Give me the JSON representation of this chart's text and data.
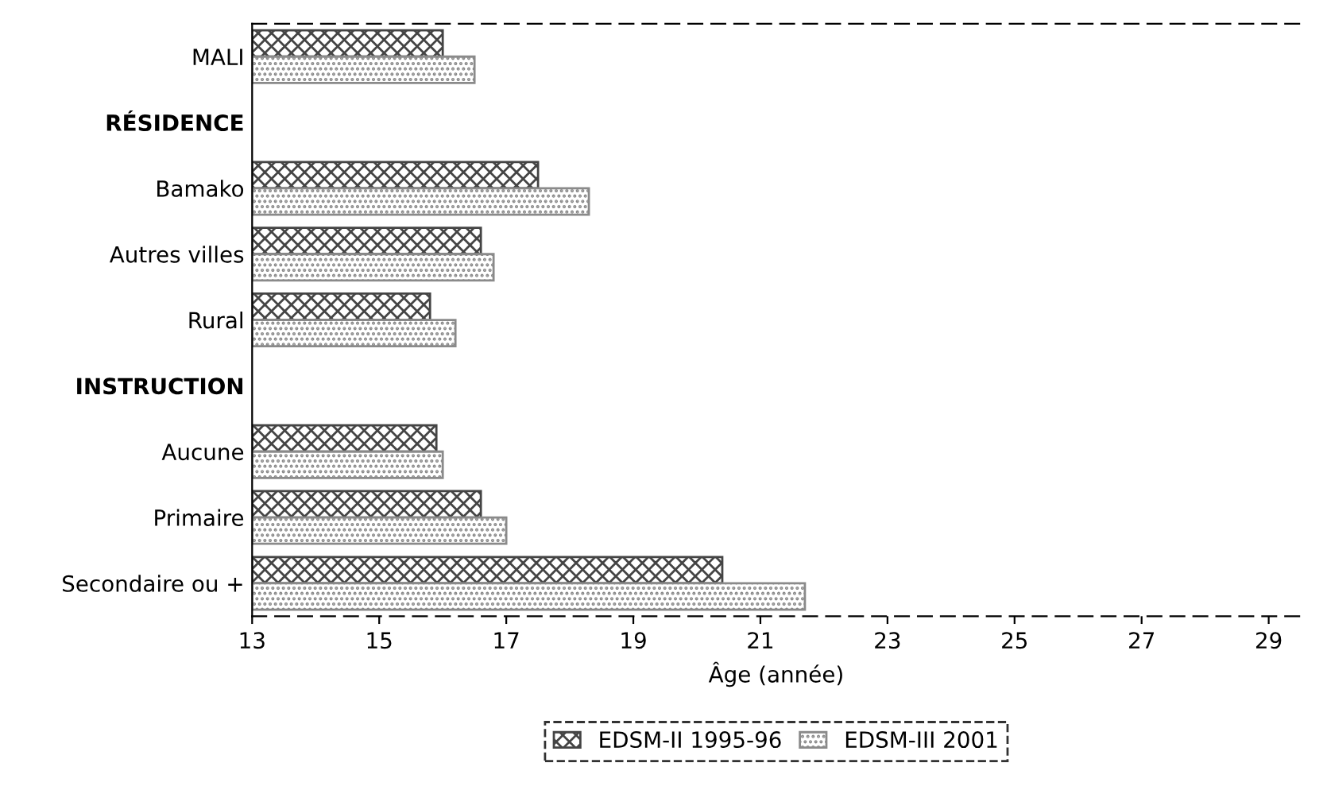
{
  "chart_data": {
    "type": "bar",
    "orientation": "horizontal",
    "xlabel": "Âge (année)",
    "categories": [
      "MALI",
      "RÉSIDENCE",
      "Bamako",
      "Autres villes",
      "Rural",
      "INSTRUCTION",
      "Aucune",
      "Primaire",
      "Secondaire ou +"
    ],
    "series": [
      {
        "name": "EDSM-II 1995-96",
        "color": "#444444",
        "values": [
          16.0,
          null,
          17.5,
          16.6,
          15.8,
          null,
          15.9,
          16.6,
          20.4
        ]
      },
      {
        "name": "EDSM-III 2001",
        "color": "#8a8a8a",
        "values": [
          16.5,
          null,
          18.3,
          16.8,
          16.2,
          null,
          16.0,
          17.0,
          21.7
        ]
      }
    ],
    "xlim": [
      13,
      29.5
    ],
    "xticks": [
      13,
      15,
      17,
      19,
      21,
      23,
      25,
      27,
      29
    ],
    "grid": false,
    "legend": "bottom"
  }
}
